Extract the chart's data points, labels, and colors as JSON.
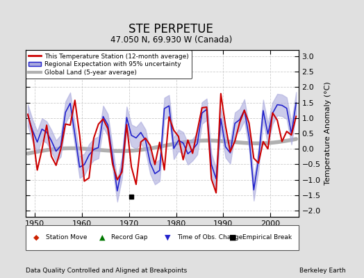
{
  "title": "STE PERPETUE",
  "subtitle": "47.050 N, 69.930 W (Canada)",
  "ylabel": "Temperature Anomaly (°C)",
  "xlabel_bottom": "Data Quality Controlled and Aligned at Breakpoints",
  "xlabel_right": "Berkeley Earth",
  "ylim": [
    -2.2,
    3.2
  ],
  "xlim": [
    1948,
    2006
  ],
  "yticks": [
    -2,
    -1.5,
    -1,
    -0.5,
    0,
    0.5,
    1,
    1.5,
    2,
    2.5,
    3
  ],
  "xticks": [
    1950,
    1960,
    1970,
    1980,
    1990,
    2000
  ],
  "bg_color": "#e0e0e0",
  "plot_bg_color": "#ffffff",
  "regional_color": "#2222cc",
  "regional_fill_color": "#aaaadd",
  "station_color": "#cc0000",
  "global_color": "#b0b0b0",
  "empirical_break_year": 1970.5,
  "empirical_break_value": -1.55,
  "seed": 17
}
